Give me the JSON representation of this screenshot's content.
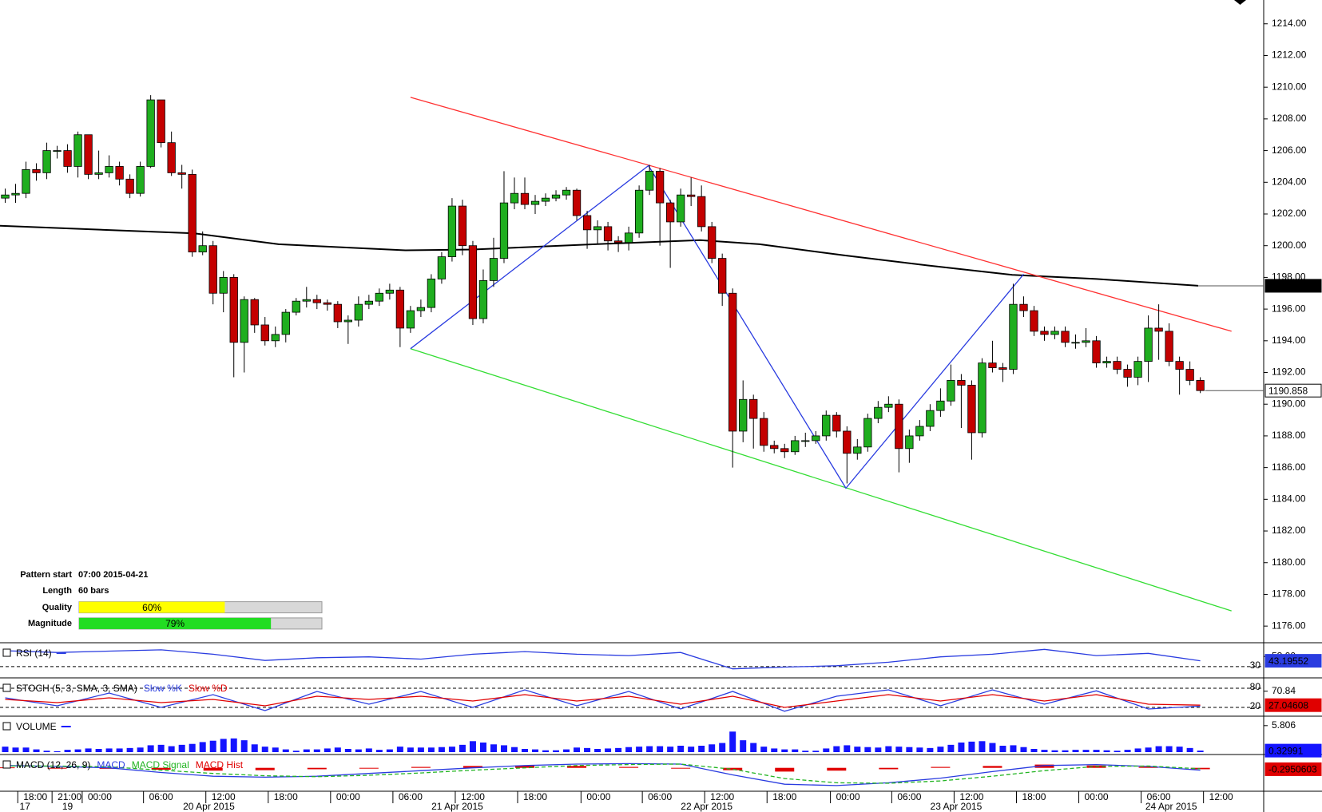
{
  "chart_data": [
    {
      "type": "candlestick",
      "xlim": [
        -0.5,
        121.1
      ],
      "ylim": [
        1175,
        1215.5
      ],
      "yticks": [
        {
          "value": 1176,
          "label": "1176.00"
        },
        {
          "value": 1178,
          "label": "1178.00"
        },
        {
          "value": 1180,
          "label": "1180.00"
        },
        {
          "value": 1182,
          "label": "1182.00"
        },
        {
          "value": 1184,
          "label": "1184.00"
        },
        {
          "value": 1186,
          "label": "1186.00"
        },
        {
          "value": 1188,
          "label": "1188.00"
        },
        {
          "value": 1190,
          "label": "1190.00"
        },
        {
          "value": 1192,
          "label": "1192.00"
        },
        {
          "value": 1194,
          "label": "1194.00"
        },
        {
          "value": 1196,
          "label": "1196.00"
        },
        {
          "value": 1198,
          "label": "1198.00"
        },
        {
          "value": 1200,
          "label": "1200.00"
        },
        {
          "value": 1202,
          "label": "1202.00"
        },
        {
          "value": 1204,
          "label": "1204.00"
        },
        {
          "value": 1206,
          "label": "1206.00"
        },
        {
          "value": 1208,
          "label": "1208.00"
        },
        {
          "value": 1210,
          "label": "1210.00"
        },
        {
          "value": 1212,
          "label": "1212.00"
        },
        {
          "value": 1214,
          "label": "1214.00"
        }
      ],
      "xticks": [
        {
          "value": 2.9,
          "label": "18:00"
        },
        {
          "value": 6.2,
          "label": "21:00"
        },
        {
          "value": 9.1,
          "label": "00:00"
        },
        {
          "value": 15,
          "label": "06:00"
        },
        {
          "value": 21,
          "label": "12:00"
        },
        {
          "value": 27,
          "label": "18:00"
        },
        {
          "value": 33,
          "label": "00:00"
        },
        {
          "value": 39,
          "label": "06:00"
        },
        {
          "value": 45,
          "label": "12:00"
        },
        {
          "value": 51,
          "label": "18:00"
        },
        {
          "value": 57.1,
          "label": "00:00"
        },
        {
          "value": 63,
          "label": "06:00"
        },
        {
          "value": 69,
          "label": "12:00"
        },
        {
          "value": 75,
          "label": "18:00"
        },
        {
          "value": 81.1,
          "label": "00:00"
        },
        {
          "value": 87,
          "label": "06:00"
        },
        {
          "value": 93,
          "label": "12:00"
        },
        {
          "value": 99,
          "label": "18:00"
        },
        {
          "value": 105,
          "label": "00:00"
        },
        {
          "value": 111,
          "label": "06:00"
        },
        {
          "value": 117,
          "label": "12:00"
        }
      ],
      "date_labels": [
        {
          "value": 1.9,
          "label": "17"
        },
        {
          "value": 6,
          "label": "19"
        },
        {
          "value": 19.6,
          "label": "20 Apr 2015"
        },
        {
          "value": 43.5,
          "label": "21 Apr 2015"
        },
        {
          "value": 67.5,
          "label": "22 Apr 2015"
        },
        {
          "value": 91.5,
          "label": "23 Apr 2015"
        },
        {
          "value": 112.2,
          "label": "24 Apr 2015"
        }
      ],
      "colors": {
        "up": "#1fae1f",
        "down": "#c40000"
      },
      "open": [
        1203.0,
        1203.2,
        1203.3,
        1204.8,
        1204.6,
        1206,
        1206,
        1205,
        1207,
        1204.5,
        1204.6,
        1205,
        1204.2,
        1203.3,
        1205,
        1209.2,
        1206.5,
        1204.6,
        1204.5,
        1199.6,
        1200,
        1197,
        1198,
        1193.9,
        1196.6,
        1195,
        1194,
        1194.4,
        1195.8,
        1196.5,
        1196.6,
        1196.4,
        1196.3,
        1195.2,
        1195.3,
        1196.3,
        1196.5,
        1197,
        1197.2,
        1194.8,
        1195.9,
        1196.1,
        1197.9,
        1199.3,
        1202.5,
        1200,
        1195.4,
        1197.8,
        1199.2,
        1202.7,
        1203.3,
        1202.6,
        1202.8,
        1203,
        1203.2,
        1203.5,
        1201.9,
        1201,
        1201.2,
        1200.3,
        1200.2,
        1200.8,
        1203.5,
        1204.7,
        1202.7,
        1201.5,
        1203.2,
        1203.1,
        1201.2,
        1199.2,
        1197,
        1188.3,
        1190.3,
        1189.1,
        1187.4,
        1187.2,
        1187,
        1187.7,
        1187.7,
        1188,
        1189.3,
        1188.3,
        1186.9,
        1187.3,
        1189.1,
        1189.8,
        1190,
        1187.2,
        1188,
        1188.6,
        1189.6,
        1190.2,
        1191.5,
        1191.2,
        1188.2,
        1192.6,
        1192.3,
        1192.2,
        1196.3,
        1195.9,
        1194.6,
        1194.4,
        1194.6,
        1193.9,
        1193.9,
        1194,
        1192.6,
        1192.7,
        1192.2,
        1191.7,
        1192.7,
        1194.8,
        1194.6,
        1192.7,
        1192.2,
        1191.5
      ],
      "high": [
        1203.6,
        1203.9,
        1205.3,
        1205.2,
        1206.5,
        1206.3,
        1206.4,
        1207.2,
        1207,
        1206,
        1205.7,
        1205.3,
        1204.5,
        1205.3,
        1209.5,
        1209.2,
        1207.2,
        1205.1,
        1204.8,
        1200.9,
        1200.3,
        1198.4,
        1198.2,
        1196.8,
        1196.7,
        1195.5,
        1194.9,
        1196,
        1196.7,
        1197.4,
        1196.9,
        1196.6,
        1196.5,
        1195.6,
        1196.8,
        1196.9,
        1197.3,
        1197.6,
        1197.4,
        1196.2,
        1196.6,
        1198.2,
        1199.6,
        1203,
        1202.9,
        1200.3,
        1198.5,
        1200.5,
        1204.7,
        1204.3,
        1204.3,
        1203.2,
        1203.3,
        1203.5,
        1203.7,
        1203.6,
        1202.2,
        1201.6,
        1201.5,
        1200.6,
        1201.2,
        1203.8,
        1205.1,
        1204.9,
        1202.9,
        1203.6,
        1204.3,
        1203.8,
        1201.5,
        1199.5,
        1197.3,
        1191.5,
        1190.6,
        1189.5,
        1187.7,
        1187.5,
        1188,
        1188.2,
        1188.3,
        1189.6,
        1189.5,
        1188.6,
        1187.8,
        1189.4,
        1190.2,
        1190.5,
        1190.3,
        1188.4,
        1189,
        1190,
        1191,
        1192.5,
        1191.9,
        1191.5,
        1192.9,
        1194,
        1192.6,
        1197.6,
        1196.8,
        1196.2,
        1194.9,
        1194.9,
        1194.9,
        1194.4,
        1194.8,
        1194.3,
        1193,
        1193,
        1192.5,
        1193,
        1195.6,
        1196.3,
        1195.1,
        1193,
        1192.7,
        1191.7
      ],
      "low": [
        1202.7,
        1202.7,
        1203,
        1204.1,
        1204.2,
        1205.5,
        1204.6,
        1204.3,
        1204.2,
        1204.2,
        1204.3,
        1203.8,
        1203,
        1203.1,
        1204.9,
        1206.2,
        1204.4,
        1203.6,
        1199.3,
        1199.4,
        1196.3,
        1195.8,
        1191.7,
        1192,
        1194.5,
        1193.7,
        1193.6,
        1193.9,
        1195.6,
        1196.1,
        1196,
        1195.9,
        1194.8,
        1193.8,
        1194.9,
        1196,
        1196.2,
        1196.6,
        1193.6,
        1194.5,
        1195.5,
        1195.8,
        1197.6,
        1199,
        1199.4,
        1195,
        1195.1,
        1197.4,
        1198.9,
        1202.3,
        1202.3,
        1202,
        1202.5,
        1202.8,
        1202.9,
        1201.6,
        1199.8,
        1200.1,
        1199.7,
        1199.6,
        1199.7,
        1200.5,
        1203.2,
        1200,
        1198.6,
        1201.2,
        1202.5,
        1200.9,
        1198.9,
        1196.2,
        1186,
        1187.6,
        1187.2,
        1187,
        1186.9,
        1186.6,
        1186.8,
        1187.3,
        1187.5,
        1187.7,
        1187.9,
        1185,
        1186.5,
        1187,
        1188.8,
        1189.5,
        1185.7,
        1186.3,
        1187.7,
        1188.3,
        1189.2,
        1189.9,
        1188.5,
        1186.5,
        1187.9,
        1192,
        1191.4,
        1191.9,
        1195.5,
        1194.3,
        1194,
        1194.1,
        1193.6,
        1193.5,
        1193.6,
        1192.3,
        1192.3,
        1191.9,
        1191.1,
        1191.2,
        1191.4,
        1192.8,
        1192.4,
        1190.6,
        1191.2,
        1190.7
      ],
      "close": [
        1203.2,
        1203.3,
        1204.8,
        1204.6,
        1206,
        1206,
        1205,
        1207,
        1204.5,
        1204.6,
        1205,
        1204.2,
        1203.3,
        1205,
        1209.2,
        1206.5,
        1204.6,
        1204.5,
        1199.6,
        1200,
        1197,
        1198,
        1193.9,
        1196.6,
        1195,
        1194,
        1194.4,
        1195.8,
        1196.5,
        1196.6,
        1196.4,
        1196.3,
        1195.2,
        1195.3,
        1196.3,
        1196.5,
        1197,
        1197.2,
        1194.8,
        1195.9,
        1196.1,
        1197.9,
        1199.3,
        1202.5,
        1200,
        1195.4,
        1197.8,
        1199.2,
        1202.7,
        1203.3,
        1202.6,
        1202.8,
        1203,
        1203.2,
        1203.5,
        1201.9,
        1201,
        1201.2,
        1200.3,
        1200.2,
        1200.8,
        1203.5,
        1204.7,
        1202.7,
        1201.5,
        1203.2,
        1203.1,
        1201.2,
        1199.2,
        1197,
        1188.3,
        1190.3,
        1189.1,
        1187.4,
        1187.2,
        1187,
        1187.7,
        1187.7,
        1188,
        1189.3,
        1188.3,
        1186.9,
        1187.3,
        1189.1,
        1189.8,
        1190,
        1187.2,
        1188,
        1188.6,
        1189.6,
        1190.2,
        1191.5,
        1191.2,
        1188.2,
        1192.6,
        1192.3,
        1192.2,
        1196.3,
        1195.9,
        1194.6,
        1194.4,
        1194.6,
        1193.9,
        1193.9,
        1194,
        1192.6,
        1192.7,
        1192.2,
        1191.7,
        1192.7,
        1194.8,
        1194.6,
        1192.7,
        1192.2,
        1191.5,
        1190.858
      ],
      "ma": {
        "color": "#000000",
        "x": [
          -0.5,
          7.6,
          18.2,
          26.3,
          38.5,
          45,
          56.3,
          66.9,
          72.6,
          80.7,
          88.8,
          96.9,
          105,
          114.8
        ],
        "values": [
          1201.26,
          1201.05,
          1200.78,
          1200.09,
          1199.71,
          1199.76,
          1200.08,
          1200.35,
          1200.09,
          1199.39,
          1198.75,
          1198.16,
          1197.9,
          1197.469
        ]
      },
      "channel": {
        "upper": {
          "color": "#ff3030",
          "x": [
            39,
            118
          ],
          "values": [
            1209.36,
            1194.6
          ]
        },
        "lower": {
          "color": "#33dd33",
          "x": [
            39,
            118
          ],
          "values": [
            1193.5,
            1176.96
          ]
        }
      },
      "zigzag": {
        "color": "#2a3ce0",
        "x": [
          39,
          61.9,
          80.9,
          98
        ],
        "values": [
          1193.5,
          1205.05,
          1184.7,
          1198.2
        ]
      }
    },
    {
      "type": "line",
      "title": "RSI (14)",
      "color": "#2a3ce0",
      "x": [
        0,
        5,
        10,
        15,
        20,
        25,
        30,
        35,
        40,
        45,
        50,
        55,
        60,
        65,
        70,
        75,
        80,
        85,
        90,
        95,
        100,
        105,
        110,
        115
      ],
      "values": [
        66,
        62,
        65,
        68,
        58,
        44,
        50,
        52,
        47,
        58,
        64,
        58,
        55,
        62,
        25,
        29,
        32,
        40,
        52,
        58,
        69,
        55,
        60,
        43.19552
      ],
      "ylim": [
        10,
        75
      ],
      "yticks": [
        30,
        {
          "value": 53,
          "label": "53.00"
        }
      ]
    },
    {
      "type": "line",
      "title": "STOCH (5, 3, SMA, 3, SMA)",
      "x": [
        0,
        5,
        10,
        15,
        20,
        25,
        30,
        35,
        40,
        45,
        50,
        55,
        60,
        65,
        70,
        75,
        80,
        85,
        90,
        95,
        100,
        105,
        110,
        115
      ],
      "series": [
        {
          "name": "Slow %K",
          "color": "#2a3ce0",
          "values": [
            50,
            25,
            65,
            20,
            60,
            10,
            70,
            30,
            70,
            20,
            75,
            25,
            70,
            15,
            70,
            8,
            55,
            75,
            25,
            75,
            30,
            72,
            15,
            24
          ]
        },
        {
          "name": "Slow %D",
          "color": "#e00000",
          "values": [
            45,
            35,
            50,
            35,
            45,
            25,
            55,
            45,
            55,
            40,
            60,
            40,
            55,
            30,
            55,
            20,
            40,
            60,
            40,
            60,
            40,
            60,
            30,
            27.04608
          ]
        }
      ],
      "ylim": [
        0,
        100
      ],
      "yticks": [
        80,
        20,
        {
          "value": 70.84,
          "label": "70.84"
        }
      ]
    },
    {
      "type": "bar",
      "title": "VOLUME",
      "color": "#1414ff",
      "values": [
        1.2,
        1.0,
        1.0,
        0.6,
        0.3,
        0.2,
        0.5,
        0.6,
        0.8,
        0.7,
        0.8,
        0.8,
        0.9,
        1.0,
        1.5,
        1.6,
        1.3,
        1.6,
        1.8,
        2.2,
        2.5,
        2.9,
        3.0,
        2.6,
        1.7,
        1.2,
        1.0,
        0.6,
        0.3,
        0.6,
        0.6,
        0.8,
        1.0,
        0.7,
        0.6,
        0.8,
        0.5,
        0.6,
        1.2,
        1.0,
        1.0,
        1.0,
        1.1,
        1.2,
        1.6,
        2.4,
        2.1,
        1.7,
        1.5,
        1.1,
        0.7,
        0.6,
        0.4,
        0.4,
        0.6,
        1.0,
        0.9,
        0.7,
        0.8,
        0.9,
        1.1,
        1.2,
        1.3,
        1.3,
        1.2,
        1.4,
        1.2,
        1.4,
        1.7,
        2.0,
        4.5,
        2.6,
        2.0,
        1.2,
        0.8,
        0.6,
        0.6,
        0.3,
        0.3,
        0.8,
        1.3,
        1.5,
        1.2,
        1.1,
        1.0,
        1.3,
        1.2,
        1.1,
        1.0,
        0.9,
        1.2,
        1.6,
        2.1,
        2.3,
        2.4,
        2.0,
        1.4,
        1.5,
        1.1,
        0.7,
        0.5,
        0.4,
        0.4,
        0.5,
        0.5,
        0.5,
        0.4,
        0.3,
        0.5,
        0.8,
        1.0,
        1.3,
        1.3,
        1.2,
        0.9,
        0.32991
      ],
      "ylim": [
        0,
        7
      ],
      "yticks": [
        {
          "value": 5.806,
          "label": "5.806"
        }
      ]
    },
    {
      "type": "macd",
      "title": "MACD (12, 26, 9)",
      "x": [
        0,
        5,
        10,
        15,
        20,
        25,
        30,
        35,
        40,
        45,
        50,
        55,
        60,
        65,
        70,
        75,
        80,
        85,
        90,
        95,
        100,
        105,
        110,
        115
      ],
      "series": [
        {
          "name": "MACD",
          "color": "#2a3ce0",
          "values": [
            0.5,
            0.3,
            0,
            -1,
            -1.8,
            -2,
            -1.8,
            -1.2,
            -0.6,
            0,
            0.5,
            0.8,
            0.9,
            0.8,
            -1.5,
            -3.5,
            -3.8,
            -3.2,
            -2.2,
            -0.8,
            0.5,
            0.7,
            0.3,
            -0.5
          ]
        },
        {
          "name": "MACD Signal",
          "color": "#22b422",
          "values": [
            0.4,
            0.4,
            0.2,
            -0.5,
            -1.2,
            -1.7,
            -1.9,
            -1.6,
            -1.1,
            -0.5,
            0,
            0.5,
            0.7,
            0.8,
            -0.3,
            -2.3,
            -3.2,
            -3.3,
            -2.8,
            -1.8,
            -0.6,
            0.3,
            0.4,
            -0.2
          ]
        },
        {
          "name": "MACD Hist",
          "color": "#e00000",
          "values": [
            0.1,
            -0.1,
            -0.2,
            -0.4,
            -0.6,
            -0.5,
            -0.3,
            -0.1,
            0.2,
            0.4,
            0.5,
            0.4,
            0.2,
            0.0,
            -0.5,
            -0.8,
            -0.6,
            -0.3,
            0.2,
            0.4,
            0.7,
            0.5,
            0.2,
            -0.2950603
          ]
        }
      ],
      "ylim": [
        -4.5,
        2
      ]
    }
  ],
  "pattern_info": {
    "rows": [
      {
        "label": "Pattern start",
        "value": "07:00 2015-04-21"
      },
      {
        "label": "Length",
        "value": "60 bars"
      },
      {
        "label": "Quality",
        "value": 60,
        "value_label": "60%",
        "color": "#ffff00"
      },
      {
        "label": "Magnitude",
        "value": 79,
        "value_label": "79%",
        "color": "#22dd22"
      }
    ]
  }
}
